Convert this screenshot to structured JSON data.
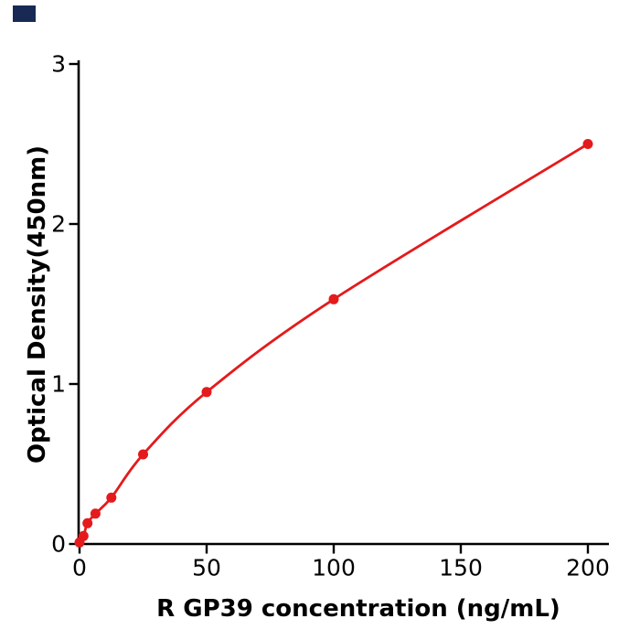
{
  "watermark": {
    "color": "#182a54"
  },
  "chart_data": {
    "type": "scatter",
    "fit_line": true,
    "title": "",
    "xlabel": "R  GP39 concentration (ng/mL)",
    "ylabel": "Optical Density(450nm)",
    "x": [
      0,
      1.5625,
      3.125,
      6.25,
      12.5,
      25,
      50,
      100,
      200
    ],
    "y": [
      0.01,
      0.05,
      0.13,
      0.19,
      0.29,
      0.56,
      0.95,
      1.53,
      2.5
    ],
    "xticks": [
      "0",
      "50",
      "100",
      "150",
      "200"
    ],
    "yticks": [
      "0",
      "1",
      "2",
      "3"
    ],
    "xlim": [
      0,
      208
    ],
    "ylim": [
      0,
      3
    ],
    "grid": false,
    "legend": "none",
    "marker_color": "#e41a1c",
    "line_color": "#e41a1c",
    "axis_color": "#000000",
    "background": "#ffffff"
  }
}
